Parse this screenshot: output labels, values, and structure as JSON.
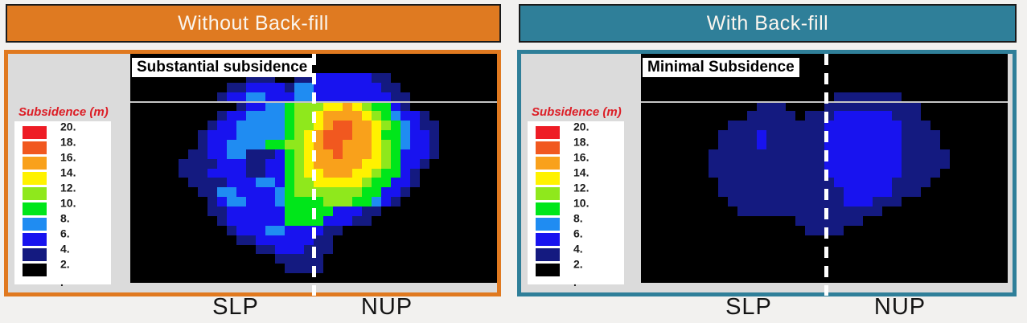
{
  "figure": {
    "panels": [
      {
        "header": "Without Back-fill",
        "header_bg": "#DF7A21",
        "frame_color": "#E0791F",
        "annotation": "Substantial subsidence",
        "axis_left": "SLP",
        "axis_right": "NUP"
      },
      {
        "header": "With Back-fill",
        "header_bg": "#2F7F99",
        "frame_color": "#2F7F99",
        "annotation": "Minimal Subsidence",
        "axis_left": "SLP",
        "axis_right": "NUP"
      }
    ],
    "legend": {
      "title": "Subsidence (m)",
      "title_color": "#DC1E26",
      "entries": [
        {
          "label": "20.",
          "color": "#EE1C25"
        },
        {
          "label": "18.",
          "color": "#F1581F"
        },
        {
          "label": "16.",
          "color": "#F9A11B"
        },
        {
          "label": "14.",
          "color": "#FFF200"
        },
        {
          "label": "12.",
          "color": "#8FE81C"
        },
        {
          "label": "10.",
          "color": "#00E61A"
        },
        {
          "label": "8.",
          "color": "#1F8CF2"
        },
        {
          "label": "6.",
          "color": "#1813EF"
        },
        {
          "label": "4.",
          "color": "#141A80"
        },
        {
          "label": "2.",
          "color": "#000000"
        }
      ],
      "bottom_label": "."
    },
    "palette": {
      "K": "#000000",
      "n": "#141A80",
      "b": "#1813EF",
      "c": "#1F8CF2",
      "g": "#00E61A",
      "l": "#8FE81C",
      "y": "#FFF200",
      "o": "#F9A11B",
      "r": "#F1581F",
      "e": "#EE1C25"
    }
  },
  "chart_data": [
    {
      "type": "heatmap",
      "title": "Without Back-fill",
      "annotation": "Substantial subsidence",
      "x_labels": [
        "SLP",
        "NUP"
      ],
      "colorbar_title": "Subsidence (m)",
      "colorbar_ticks": [
        20,
        18,
        16,
        14,
        12,
        10,
        8,
        6,
        4,
        2
      ],
      "colorbar_range": [
        0,
        20
      ],
      "legend_position": "left",
      "grid_cols": 38,
      "grid_rows": 24,
      "cell_bins_m": {
        "K": [
          0,
          2
        ],
        "n": [
          2,
          4
        ],
        "b": [
          4,
          6
        ],
        "c": [
          6,
          8
        ],
        "g": [
          8,
          10
        ],
        "l": [
          10,
          12
        ],
        "y": [
          12,
          14
        ],
        "o": [
          14,
          16
        ],
        "r": [
          16,
          18
        ],
        "e": [
          18,
          20
        ]
      },
      "grid": [
        "KKKKKKKKKKKKKKKKKKKKKKKKKKKKKKKKKKKKKK",
        "KKKKKKKKKKKKKKKKKKKKKKKKKKKKKKKKKKKKKK",
        "KKKKKKKKKKKKnnnKKnnbbbbbbnnKKKKKKKKKKK",
        "KKKKKKKKKKnnbbbbnccbbbbbbbnnKKKKKKKKKK",
        "KKKKKKKKKnbbccbbbccbbbbbbbbnnKKKKKKKKK",
        "KKKKKKKKKKKnbbccglllyyoylggbnKKKKKKKKK",
        "KKKKKKKKKnbbccccgllyooooylgcbbnKKKKKKK",
        "KKKKKKKKnbbcccccgllyorrooylgcbnnKKKKKK",
        "KKKKKKKnbbbcccccglyorrrooyggcbbnKKKKKK",
        "KKKKKKKnbbccccggllyorroooylgcbbnKKKKKK",
        "KKKKKKnnbbccnnnbglyooroooylgbbbnKKKKKK",
        "KKKKKnnnnbbbnnbbglyoooooyylgbbnKKKKKKK",
        "KKKKKnnnbbbbnnbbglyyoooyylggbnKKKKKKKK",
        "KKKKKKnnnnbbbccbgllyyyyylggbbnKKKKKKKK",
        "KKKKKKKnnccbbbbcglllllllggbbnKKKKKKKKK",
        "KKKKKKKKnbccbbbcgggglllggcbnKKKKKKKKKK",
        "KKKKKKKKnnbbbbbbgggggbbbnnKKKKKKKKKKKK",
        "KKKKKKKKKnbbbbbbggggbbbnnKKKKKKKKKKKKK",
        "KKKKKKKKKKnbbbccbbbbnnKKKKKKKKKKKKKKKK",
        "KKKKKKKKKKKnnbbbbbbnnKKKKKKKKKKKKKKKKK",
        "KKKKKKKKKKKKKnnbbbnnnKKKKKKKKKKKKKKKKK",
        "KKKKKKKKKKKKKKKnnnnnKKKKKKKKKKKKKKKKKK",
        "KKKKKKKKKKKKKKKKnnnnKKKKKKKKKKKKKKKKKK",
        "KKKKKKKKKKKKKKKKKKKKKKKKKKKKKKKKKKKKKK"
      ]
    },
    {
      "type": "heatmap",
      "title": "With Back-fill",
      "annotation": "Minimal Subsidence",
      "x_labels": [
        "SLP",
        "NUP"
      ],
      "colorbar_title": "Subsidence (m)",
      "colorbar_ticks": [
        20,
        18,
        16,
        14,
        12,
        10,
        8,
        6,
        4,
        2
      ],
      "colorbar_range": [
        0,
        20
      ],
      "legend_position": "left",
      "grid_cols": 38,
      "grid_rows": 24,
      "cell_bins_m": {
        "K": [
          0,
          2
        ],
        "n": [
          2,
          4
        ],
        "b": [
          4,
          6
        ],
        "c": [
          6,
          8
        ],
        "g": [
          8,
          10
        ],
        "l": [
          10,
          12
        ],
        "y": [
          12,
          14
        ],
        "o": [
          14,
          16
        ],
        "r": [
          16,
          18
        ],
        "e": [
          18,
          20
        ]
      },
      "grid": [
        "KKKKKKKKKKKKKKKKKKKKKKKKKKKKKKKKKKKKKK",
        "KKKKKKKKKKKKKKKKKKKKKKKKKKKKKKKKKKKKKK",
        "KKKKKKKKKKKKKKKKKKKKKKKKKKKKKKKKKKKKKK",
        "KKKKKKKKKKKKKKKKKKKKKKKKKKKKKKKKKKKKKK",
        "KKKKKKKKKKKKKKKKKKKKnnnnnnnKKKKKKKKKKK",
        "KKKKKKKKKKKKnnnKKKKnnnnnnnnnnKKKKKKKKK",
        "KKKKKKKKKKKnnnnnKnnnbbbbbbnnnKKKKKKKKK",
        "KKKKKKKKKnnnnnnnnnnbbbbbbbbnnnKKKKKKKK",
        "KKKKKKKKnnnnbnnnnnnbbbbbbbbnnnnKKKKKKK",
        "KKKKKKKKnnnnbnnnnnnbbbbbbbbnnnnKKKKKKK",
        "KKKKKKKnnnnnnnnnnnnbbbbbbbbnnnnnKKKKKK",
        "KKKKKKKnnnnnnnnnnnnbbbbbbbbnnnnnKKKKKK",
        "KKKKKKKnnnnnnnnnnnnbbbbbbbbnnnnKKKKKKK",
        "KKKKKKKKnnnnnnnnnnnnbbbbbbnnnnKKKKKKKK",
        "KKKKKKKKnnnnnnnnnnnnnbbbbbnnnKKKKKKKKK",
        "KKKKKKKKKnnnnnnnnnnnnbbbnnnKKKKKKKKKKK",
        "KKKKKKKKKKnnnnnnnnnnnnnnnKKKKKKKKKKKKK",
        "KKKKKKKKKKKKKKKKnnnnnnnKKKKKKKKKKKKKKK",
        "KKKKKKKKKKKKKKKKKnnnnKKKKKKKKKKKKKKKKK",
        "KKKKKKKKKKKKKKKKKKKKKKKKKKKKKKKKKKKKKK",
        "KKKKKKKKKKKKKKKKKKKKKKKKKKKKKKKKKKKKKK",
        "KKKKKKKKKKKKKKKKKKKKKKKKKKKKKKKKKKKKKK",
        "KKKKKKKKKKKKKKKKKKKKKKKKKKKKKKKKKKKKKK",
        "KKKKKKKKKKKKKKKKKKKKKKKKKKKKKKKKKKKKKK"
      ]
    }
  ]
}
